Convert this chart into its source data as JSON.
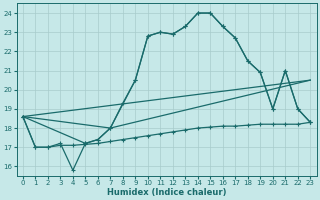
{
  "xlabel": "Humidex (Indice chaleur)",
  "xlim": [
    -0.5,
    23.5
  ],
  "ylim": [
    15.5,
    24.5
  ],
  "xticks": [
    0,
    1,
    2,
    3,
    4,
    5,
    6,
    7,
    8,
    9,
    10,
    11,
    12,
    13,
    14,
    15,
    16,
    17,
    18,
    19,
    20,
    21,
    22,
    23
  ],
  "yticks": [
    16,
    17,
    18,
    19,
    20,
    21,
    22,
    23,
    24
  ],
  "background_color": "#c6e8e8",
  "grid_color": "#a8cccc",
  "line_color": "#1a6b6b",
  "line1_x": [
    0,
    1,
    2,
    3,
    4,
    5,
    6,
    7,
    8,
    9,
    10,
    11,
    12,
    13,
    14,
    15,
    16,
    17,
    18,
    19,
    20,
    21,
    22,
    23
  ],
  "line1_y": [
    18.6,
    17.0,
    17.0,
    17.2,
    15.8,
    17.2,
    17.4,
    18.0,
    19.3,
    20.5,
    22.8,
    23.0,
    22.9,
    23.3,
    24.0,
    24.0,
    23.3,
    22.7,
    21.5,
    20.9,
    19.0,
    21.0,
    19.0,
    18.3
  ],
  "line2_x": [
    0,
    5,
    6,
    7,
    9,
    10,
    11,
    12,
    13,
    14,
    15,
    16,
    17,
    18,
    19,
    20,
    21,
    22,
    23
  ],
  "line2_y": [
    18.6,
    17.2,
    17.4,
    18.0,
    20.5,
    22.8,
    23.0,
    22.9,
    23.3,
    24.0,
    24.0,
    23.3,
    22.7,
    21.5,
    20.9,
    19.0,
    21.0,
    19.0,
    18.3
  ],
  "line3_x": [
    0,
    1,
    2,
    3,
    4,
    5,
    6,
    7,
    8,
    9,
    10,
    11,
    12,
    13,
    14,
    15,
    16,
    17,
    18,
    19,
    20,
    21,
    22,
    23
  ],
  "line3_y": [
    18.6,
    17.0,
    17.0,
    17.1,
    17.1,
    17.15,
    17.2,
    17.3,
    17.4,
    17.5,
    17.6,
    17.7,
    17.8,
    17.9,
    18.0,
    18.05,
    18.1,
    18.1,
    18.15,
    18.2,
    18.2,
    18.2,
    18.2,
    18.3
  ],
  "line4_x": [
    0,
    23
  ],
  "line4_y": [
    18.6,
    20.5
  ],
  "line5_x": [
    0,
    7,
    23
  ],
  "line5_y": [
    18.6,
    18.0,
    20.5
  ]
}
